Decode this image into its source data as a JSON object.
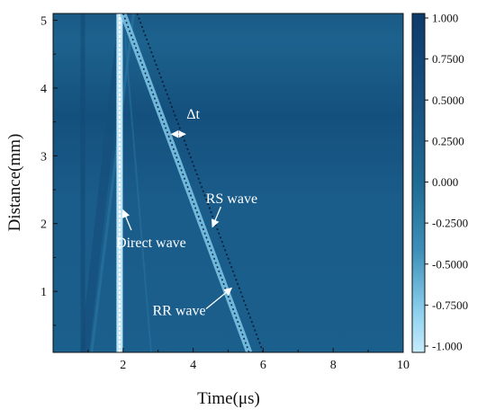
{
  "chart_data": {
    "type": "heatmap",
    "title": "",
    "xlabel": "Time(μs)",
    "ylabel": "Distance(mm)",
    "xlim": [
      0,
      10
    ],
    "ylim": [
      0.1,
      5.1
    ],
    "x_ticks": [
      2,
      4,
      6,
      8,
      10
    ],
    "y_ticks": [
      1,
      2,
      3,
      4,
      5
    ],
    "colorbar": {
      "min": -1.0,
      "max": 1.0,
      "ticks": [
        "1.000",
        "0.7500",
        "0.5000",
        "0.2500",
        "0.000",
        "-0.2500",
        "-0.5000",
        "-0.7500",
        "-1.000"
      ],
      "colors": {
        "high": "#0d3a6b",
        "mid": "#1e6b94",
        "low": "#c6ecfb"
      }
    },
    "series": [
      {
        "name": "Direct wave",
        "points": [
          [
            1.9,
            0.1
          ],
          [
            1.9,
            5.1
          ]
        ],
        "amplitude": -1.0
      },
      {
        "name": "RR wave",
        "points": [
          [
            2.0,
            5.1
          ],
          [
            5.6,
            0.1
          ]
        ],
        "amplitude": -0.6
      },
      {
        "name": "RS wave",
        "points": [
          [
            2.4,
            5.1
          ],
          [
            6.0,
            0.1
          ]
        ],
        "amplitude": 0.0
      }
    ],
    "annotations": [
      {
        "text": "Δt",
        "x": 4.0,
        "y": 3.55
      },
      {
        "text": "RS wave",
        "x": 5.1,
        "y": 2.3,
        "arrow_to": [
          4.55,
          1.95
        ]
      },
      {
        "text": "Direct wave",
        "x": 2.8,
        "y": 1.65,
        "arrow_to": [
          2.0,
          2.2
        ]
      },
      {
        "text": "RR wave",
        "x": 3.6,
        "y": 0.65,
        "arrow_to": [
          5.1,
          1.05
        ]
      }
    ],
    "legend": "none",
    "grid": false
  }
}
